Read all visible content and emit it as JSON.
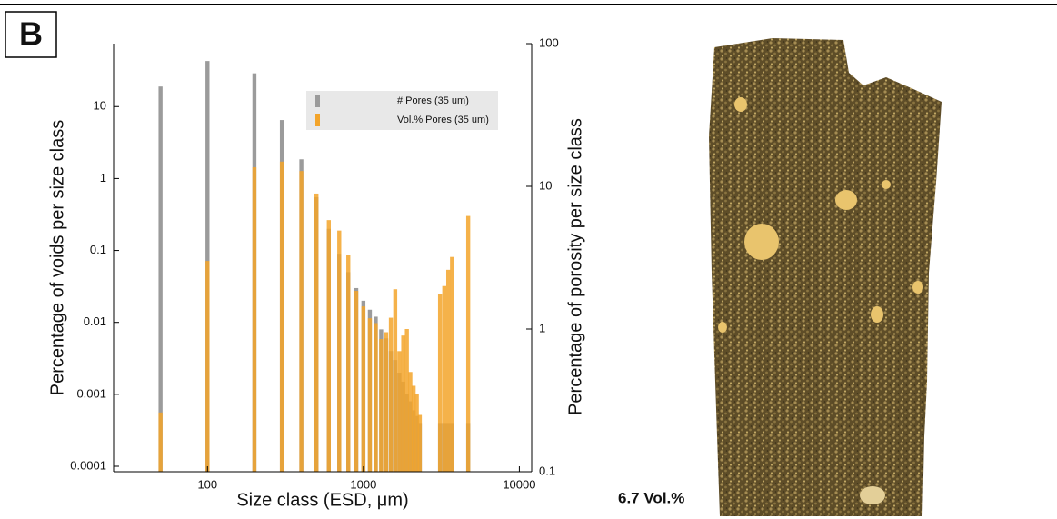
{
  "chart_data": {
    "type": "bar",
    "panel_label": "B",
    "xlabel": "Size class (ESD, μm)",
    "ylabel": "Percentage of voids per size class",
    "y2label": "Percentage of porosity per size class",
    "annotation": "6.7 Vol.%",
    "xscale": "log",
    "yscale": "log",
    "y2scale": "log",
    "xlim": [
      25,
      12000
    ],
    "ylim": [
      8.4e-05,
      75
    ],
    "y2lim": [
      0.1,
      100
    ],
    "xticks": [
      100,
      1000,
      10000
    ],
    "yticks": [
      0.0001,
      0.001,
      0.01,
      0.1,
      1,
      10
    ],
    "y2ticks": [
      0.1,
      1,
      10,
      100
    ],
    "x": [
      50,
      100,
      200,
      300,
      400,
      500,
      600,
      700,
      800,
      900,
      1000,
      1100,
      1200,
      1300,
      1400,
      1500,
      1600,
      1700,
      1800,
      1900,
      2000,
      2100,
      2200,
      2300,
      3100,
      3300,
      3500,
      3700,
      4700
    ],
    "series": [
      {
        "name": "# Pores (35 um)",
        "color": "#9b9b9b",
        "values": [
          19,
          43,
          29,
          6.5,
          1.85,
          0.55,
          0.2,
          0.09,
          0.05,
          0.03,
          0.02,
          0.015,
          0.012,
          0.008,
          0.006,
          0.004,
          0.003,
          0.002,
          0.0015,
          0.001,
          0.0008,
          0.0006,
          0.0005,
          0.0004,
          0.0004,
          0.0004,
          0.0004,
          0.0004,
          0.0004
        ]
      },
      {
        "name": "Vol.% Pores (35 um)",
        "color": "#f3a42a",
        "axis": "y2",
        "values": [
          0.26,
          3.0,
          13.6,
          14.9,
          12.8,
          8.9,
          5.8,
          4.9,
          3.3,
          1.85,
          1.44,
          1.19,
          1.1,
          0.85,
          0.95,
          1.2,
          1.9,
          0.7,
          0.9,
          1.0,
          0.5,
          0.4,
          0.35,
          0.25,
          1.77,
          2.0,
          2.6,
          3.2,
          6.2
        ]
      }
    ],
    "legend": "upper right"
  }
}
